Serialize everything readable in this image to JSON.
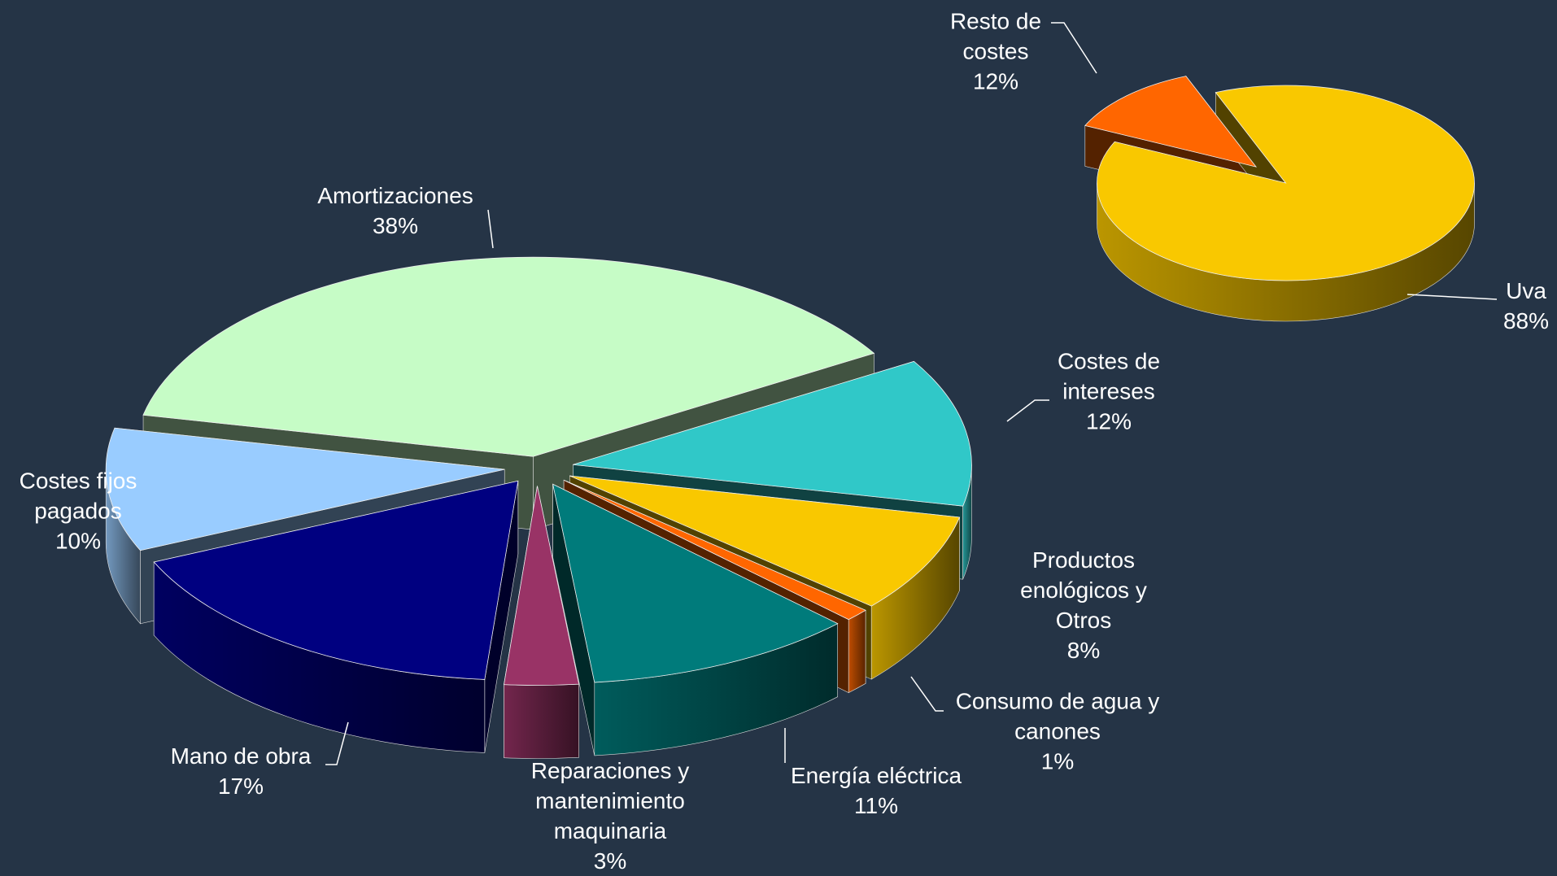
{
  "chart_data": [
    {
      "type": "pie3d",
      "categories": [
        "Resto de costes",
        "Uva"
      ],
      "values": [
        12,
        88
      ],
      "value_labels": [
        "12%",
        "88%"
      ],
      "colors": [
        "#ff6600",
        "#f9c800"
      ]
    },
    {
      "type": "pie3d",
      "categories": [
        "Amortizaciones",
        "Costes de intereses",
        "Productos enológicos y Otros",
        "Consumo de agua y canones",
        "Energía eléctrica",
        "Reparaciones y mantenimiento maquinaria",
        "Mano de obra",
        "Costes fijos pagados"
      ],
      "values": [
        38,
        12,
        8,
        1,
        11,
        3,
        17,
        10
      ],
      "value_labels": [
        "38%",
        "12%",
        "8%",
        "1%",
        "11%",
        "3%",
        "17%",
        "10%"
      ],
      "colors": [
        "#c6fcc6",
        "#30c8c8",
        "#f9c800",
        "#ff6600",
        "#007b7b",
        "#993366",
        "#000080",
        "#99ccff"
      ]
    }
  ]
}
